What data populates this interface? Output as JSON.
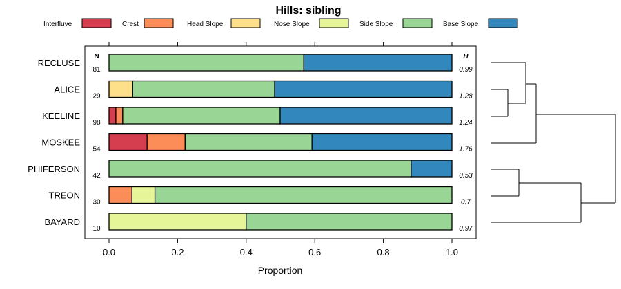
{
  "chart_data": {
    "type": "bar",
    "stacked": true,
    "orientation": "horizontal",
    "title": "Hills: sibling",
    "xlabel": "Proportion",
    "xlim": [
      0,
      1
    ],
    "xticks": [
      "0.0",
      "0.2",
      "0.4",
      "0.6",
      "0.8",
      "1.0"
    ],
    "n_header": "N",
    "h_header": "H",
    "legend": [
      {
        "name": "Interfluve",
        "color": "#D53E4F"
      },
      {
        "name": "Crest",
        "color": "#FC8D59"
      },
      {
        "name": "Head Slope",
        "color": "#FEE08B"
      },
      {
        "name": "Nose Slope",
        "color": "#E6F598"
      },
      {
        "name": "Side Slope",
        "color": "#99D594"
      },
      {
        "name": "Base Slope",
        "color": "#3288BD"
      }
    ],
    "categories": [
      "RECLUSE",
      "ALICE",
      "KEELINE",
      "MOSKEE",
      "PHIFERSON",
      "TREON",
      "BAYARD"
    ],
    "n": [
      "81",
      "29",
      "98",
      "54",
      "42",
      "30",
      "10"
    ],
    "h": [
      "0.99",
      "1.28",
      "1.24",
      "1.76",
      "0.53",
      "0.7",
      "0.97"
    ],
    "series": [
      {
        "name": "Interfluve",
        "values": [
          0,
          0,
          0.02,
          0.111,
          0,
          0,
          0
        ]
      },
      {
        "name": "Crest",
        "values": [
          0,
          0,
          0.02,
          0.111,
          0,
          0.067,
          0
        ]
      },
      {
        "name": "Head Slope",
        "values": [
          0,
          0.069,
          0,
          0,
          0,
          0,
          0
        ]
      },
      {
        "name": "Nose Slope",
        "values": [
          0,
          0,
          0,
          0,
          0,
          0.067,
          0.4
        ]
      },
      {
        "name": "Side Slope",
        "values": [
          0.568,
          0.414,
          0.459,
          0.37,
          0.881,
          0.866,
          0.6
        ]
      },
      {
        "name": "Base Slope",
        "values": [
          0.432,
          0.517,
          0.501,
          0.408,
          0.119,
          0,
          0
        ]
      }
    ],
    "dendrogram": "((RECLUSE,(ALICE,KEELINE)),MOSKEE),((PHIFERSON,TREON),BAYARD)"
  }
}
